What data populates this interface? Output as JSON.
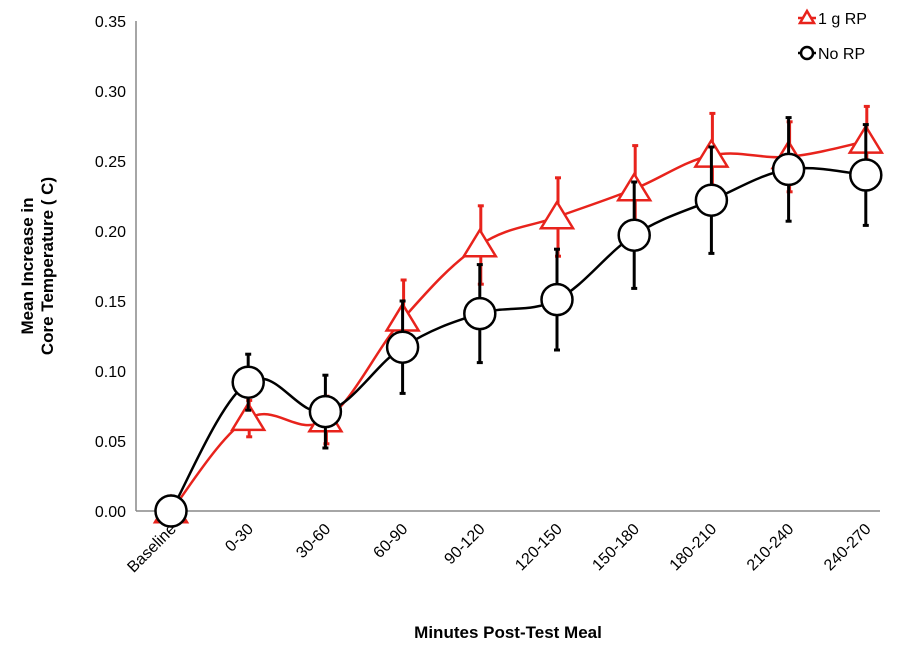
{
  "chart_data": {
    "type": "line",
    "xlabel": "Minutes Post-Test Meal",
    "ylabel_lines": [
      "Mean Increase in",
      "Core Temperature (   C)"
    ],
    "ylim": [
      0,
      0.35
    ],
    "yticks": [
      "0.00",
      "0.05",
      "0.10",
      "0.15",
      "0.20",
      "0.25",
      "0.30",
      "0.35"
    ],
    "categories": [
      "Baseline",
      "0-30",
      "30-60",
      "60-90",
      "90-120",
      "120-150",
      "150-180",
      "180-210",
      "210-240",
      "240-270"
    ],
    "legend_position": "top-right",
    "series": [
      {
        "name": "1 g RP",
        "color": "#e8231c",
        "marker": "triangle",
        "values": [
          0.0,
          0.066,
          0.065,
          0.137,
          0.19,
          0.21,
          0.23,
          0.254,
          0.253,
          0.264
        ],
        "error": [
          0.0,
          0.013,
          0.017,
          0.028,
          0.028,
          0.028,
          0.031,
          0.03,
          0.025,
          0.025
        ]
      },
      {
        "name": "No RP",
        "color": "#000000",
        "marker": "circle",
        "values": [
          0.0,
          0.092,
          0.071,
          0.117,
          0.141,
          0.151,
          0.197,
          0.222,
          0.244,
          0.24
        ],
        "error": [
          0.0,
          0.02,
          0.026,
          0.033,
          0.035,
          0.036,
          0.038,
          0.038,
          0.037,
          0.036
        ]
      }
    ]
  }
}
